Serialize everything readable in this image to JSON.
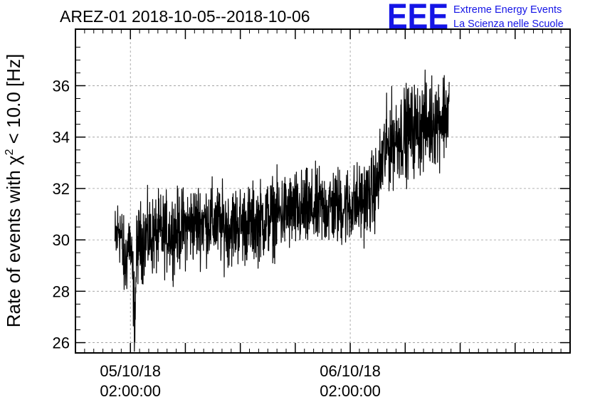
{
  "chart_data": {
    "type": "line",
    "title": "AREZ-01 2018-10-05--2018-10-06",
    "ylabel_prefix": "Rate of events with ",
    "ylabel_chi": "χ",
    "ylabel_sup": "2",
    "ylabel_suffix": " < 10.0 [Hz]",
    "ylim": [
      25.6,
      38.2
    ],
    "yticks": [
      26,
      28,
      30,
      32,
      34,
      36
    ],
    "xticks": [
      {
        "date": "05/10/18",
        "time": "02:00:00"
      },
      {
        "date": "06/10/18",
        "time": "02:00:00"
      }
    ],
    "grid": true,
    "series": [
      {
        "values": [
          [
            0.0,
            29.8
          ],
          [
            0.02,
            30.6
          ],
          [
            0.045,
            28.9
          ],
          [
            0.065,
            30.1
          ],
          [
            0.08,
            28.6
          ],
          [
            0.09,
            26.9
          ],
          [
            0.1,
            29.8
          ],
          [
            0.14,
            30.1
          ],
          [
            0.2,
            30.2
          ],
          [
            0.26,
            30.3
          ],
          [
            0.32,
            30.5
          ],
          [
            0.38,
            30.7
          ],
          [
            0.44,
            30.7
          ],
          [
            0.5,
            30.5
          ],
          [
            0.56,
            30.6
          ],
          [
            0.62,
            30.6
          ],
          [
            0.68,
            30.8
          ],
          [
            0.74,
            31.0
          ],
          [
            0.8,
            31.1
          ],
          [
            0.86,
            31.1
          ],
          [
            0.92,
            31.2
          ],
          [
            0.98,
            31.3
          ],
          [
            1.04,
            31.3
          ],
          [
            1.1,
            31.4
          ],
          [
            1.16,
            31.7
          ],
          [
            1.2,
            32.3
          ],
          [
            1.22,
            33.3
          ],
          [
            1.26,
            33.9
          ],
          [
            1.3,
            34.1
          ],
          [
            1.36,
            34.3
          ],
          [
            1.42,
            34.5
          ],
          [
            1.48,
            34.8
          ],
          [
            1.52,
            35.0
          ]
        ]
      }
    ]
  },
  "logo": {
    "mark": "EEE",
    "line1": "Extreme Energy Events",
    "line2": "La Scienza nelle Scuole",
    "color": "#1515e6"
  }
}
